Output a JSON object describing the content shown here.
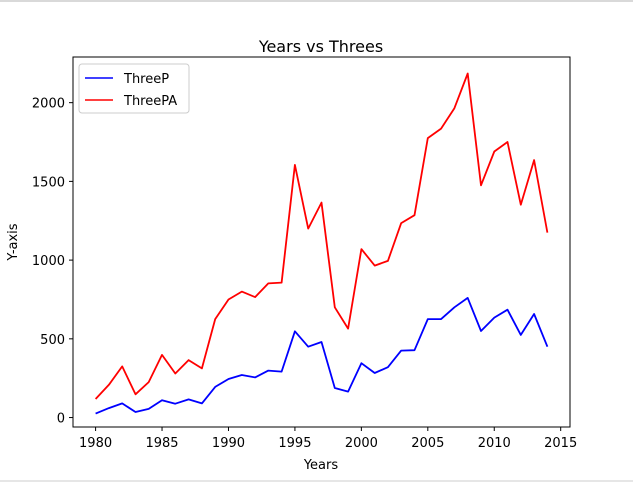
{
  "chart_data": {
    "type": "line",
    "title": "Years vs Threes",
    "xlabel": "Years",
    "ylabel": "Y-axis",
    "xlim": [
      1978.3,
      2015.7
    ],
    "ylim": [
      -60,
      2290
    ],
    "xticks": [
      1980,
      1985,
      1990,
      1995,
      2000,
      2005,
      2010,
      2015
    ],
    "yticks": [
      0,
      500,
      1000,
      1500,
      2000
    ],
    "grid": false,
    "legend_position": "top-left",
    "x": [
      1980,
      1981,
      1982,
      1983,
      1984,
      1985,
      1986,
      1987,
      1988,
      1989,
      1990,
      1991,
      1992,
      1993,
      1994,
      1995,
      1996,
      1997,
      1998,
      1999,
      2000,
      2001,
      2002,
      2003,
      2004,
      2005,
      2006,
      2007,
      2008,
      2009,
      2010,
      2011,
      2012,
      2013,
      2014
    ],
    "series": [
      {
        "name": "ThreeP",
        "color": "#0000ff",
        "values": [
          25,
          60,
          90,
          35,
          55,
          110,
          88,
          115,
          90,
          195,
          245,
          270,
          255,
          298,
          292,
          548,
          450,
          480,
          188,
          165,
          345,
          283,
          320,
          425,
          428,
          625,
          625,
          700,
          760,
          550,
          635,
          685,
          525,
          658,
          450
        ]
      },
      {
        "name": "ThreePA",
        "color": "#ff0000",
        "values": [
          118,
          208,
          325,
          148,
          225,
          398,
          280,
          365,
          312,
          625,
          750,
          800,
          765,
          852,
          857,
          1605,
          1200,
          1365,
          700,
          565,
          1070,
          965,
          995,
          1235,
          1285,
          1775,
          1835,
          1965,
          2185,
          1475,
          1690,
          1750,
          1352,
          1635,
          1175
        ]
      }
    ]
  }
}
